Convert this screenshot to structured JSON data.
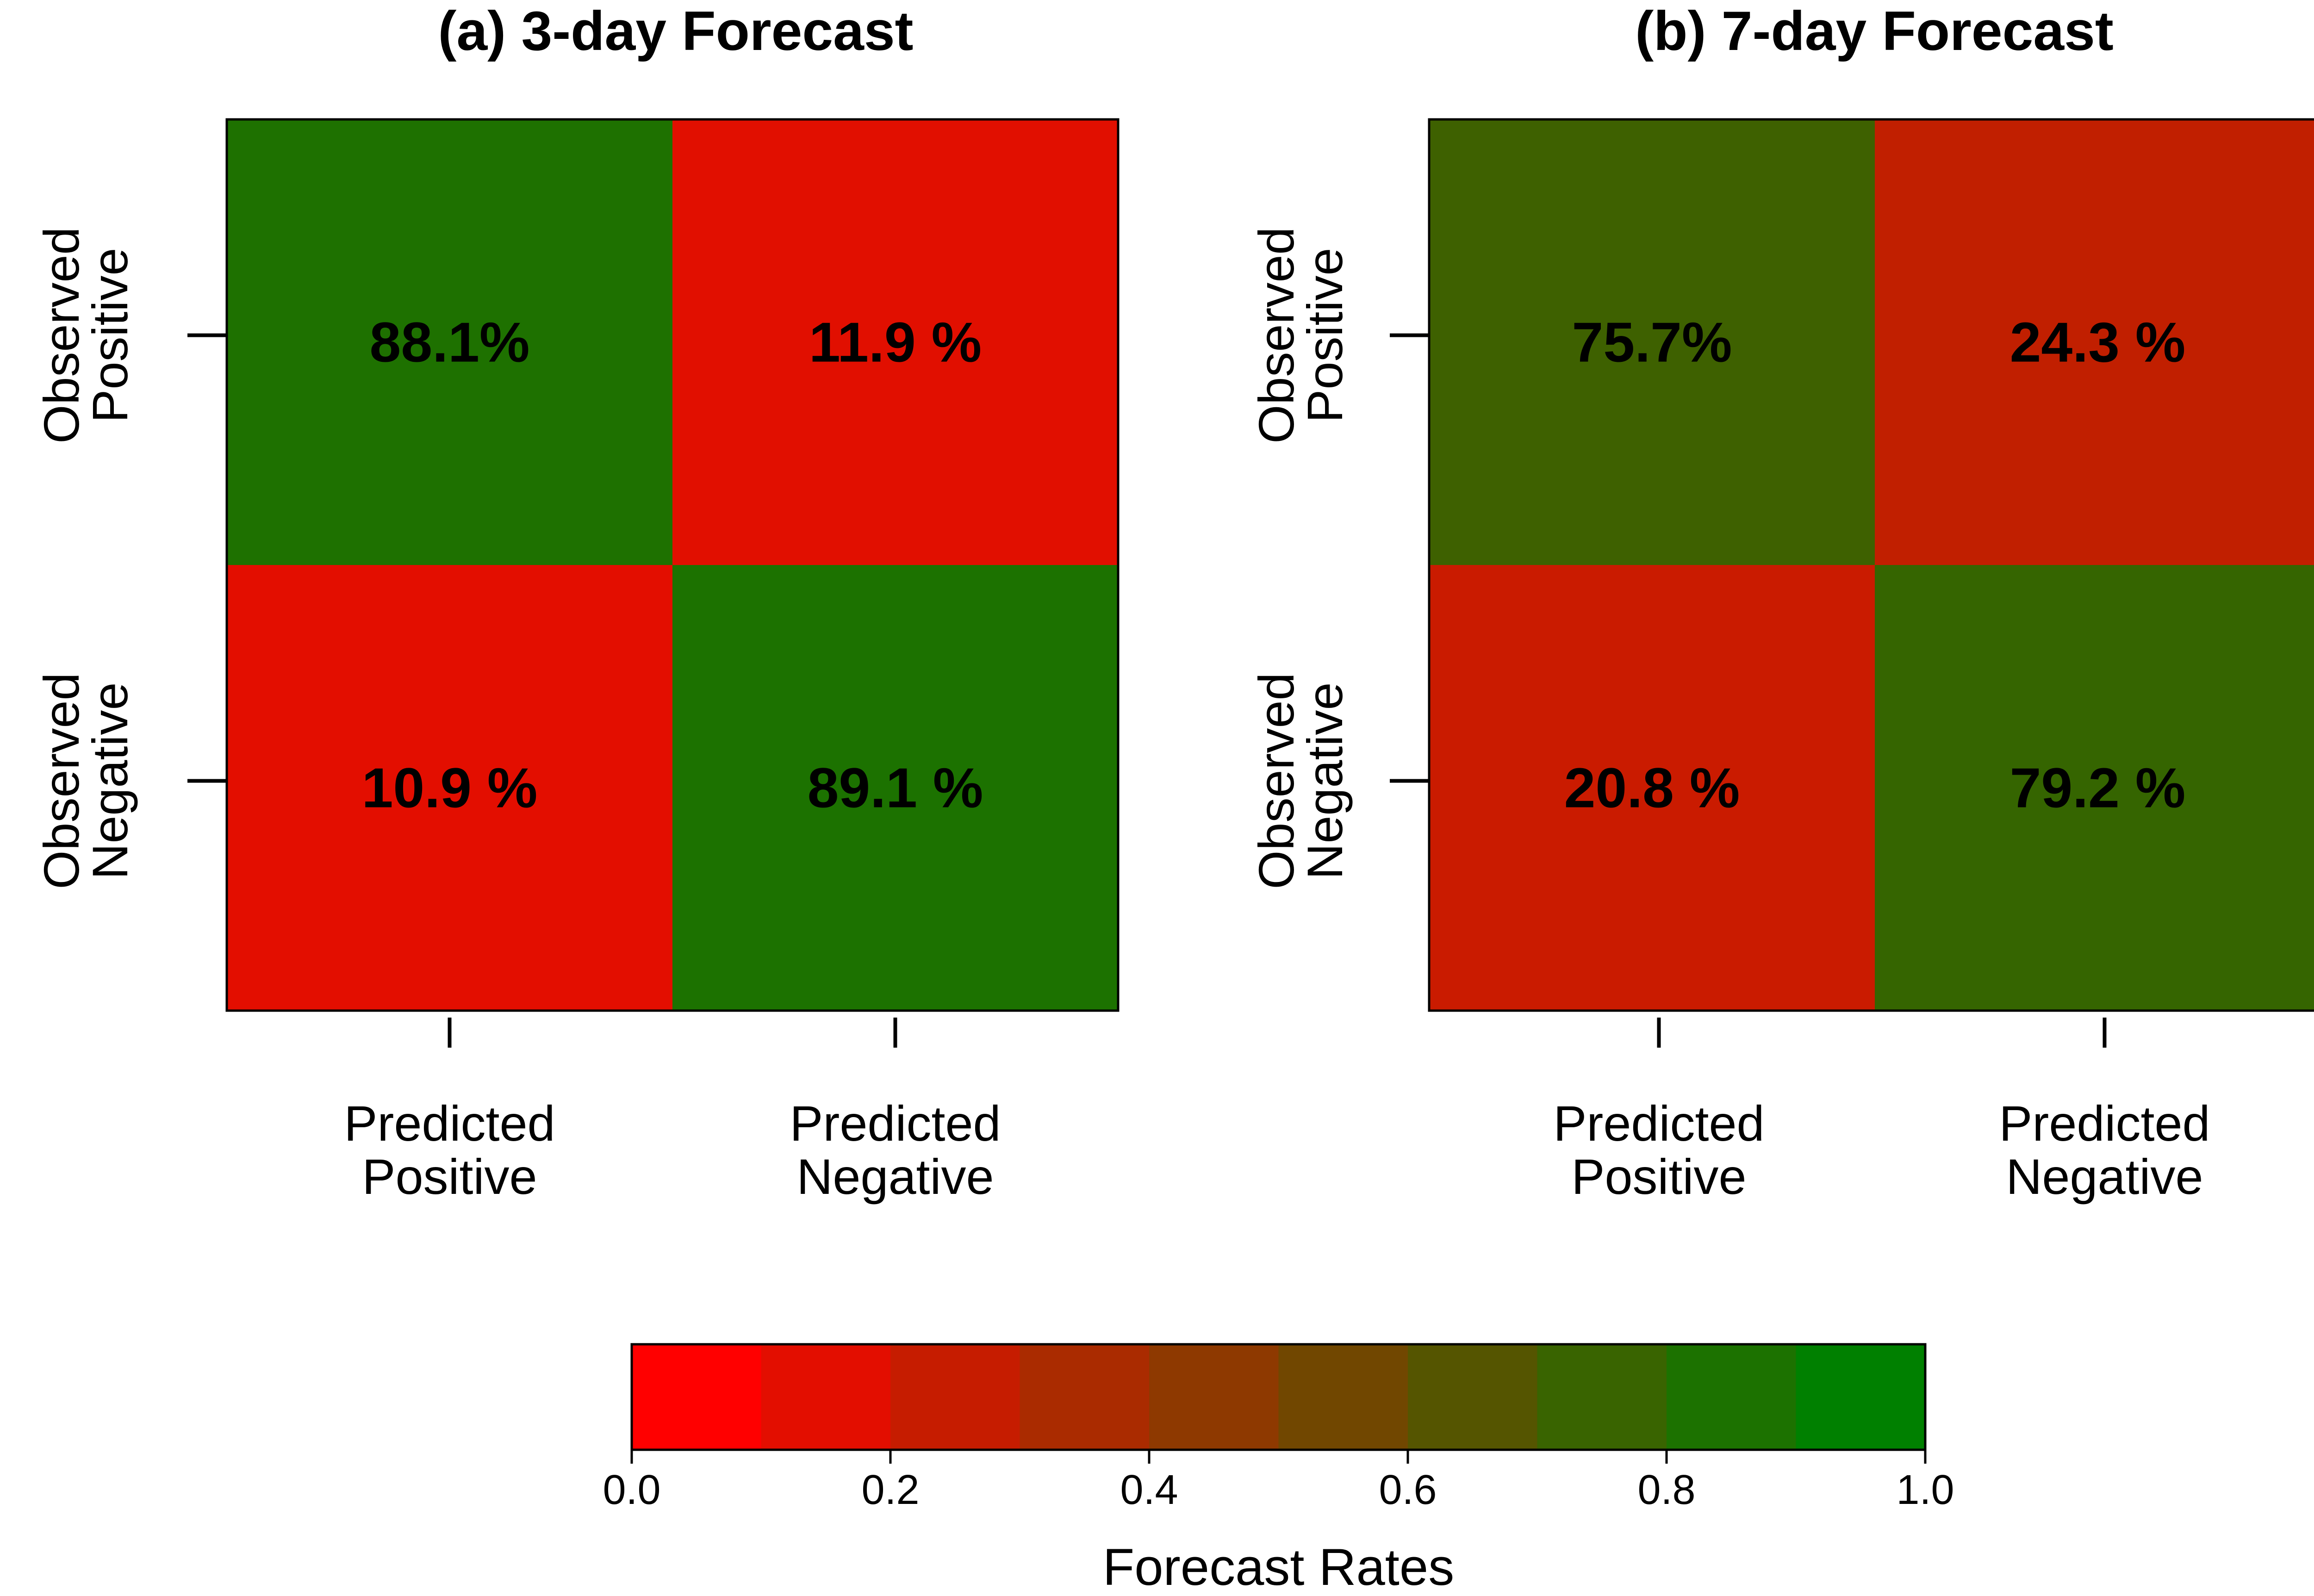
{
  "chart_data": [
    {
      "type": "heatmap",
      "title": "(a) 3-day Forecast",
      "row_labels": [
        [
          "Observed",
          "Positive"
        ],
        [
          "Observed",
          "Negative"
        ]
      ],
      "col_labels": [
        [
          "Predicted",
          "Positive"
        ],
        [
          "Predicted",
          "Negative"
        ]
      ],
      "values": [
        [
          0.881,
          0.119
        ],
        [
          0.109,
          0.891
        ]
      ],
      "cell_text": [
        [
          "88.1%",
          "11.9 %"
        ],
        [
          "10.9 %",
          "89.1 %"
        ]
      ]
    },
    {
      "type": "heatmap",
      "title": "(b) 7-day Forecast",
      "row_labels": [
        [
          "Observed",
          "Positive"
        ],
        [
          "Observed",
          "Negative"
        ]
      ],
      "col_labels": [
        [
          "Predicted",
          "Positive"
        ],
        [
          "Predicted",
          "Negative"
        ]
      ],
      "values": [
        [
          0.757,
          0.243
        ],
        [
          0.208,
          0.792
        ]
      ],
      "cell_text": [
        [
          "75.7%",
          "24.3 %"
        ],
        [
          "20.8 %",
          "79.2 %"
        ]
      ]
    }
  ],
  "colorbar": {
    "title": "Forecast Rates",
    "range": [
      0,
      1
    ],
    "bins": 10,
    "ticks": [
      "0.0",
      "0.2",
      "0.4",
      "0.6",
      "0.8",
      "1.0"
    ],
    "low_color": "#ff0000",
    "high_color": "#008000"
  }
}
